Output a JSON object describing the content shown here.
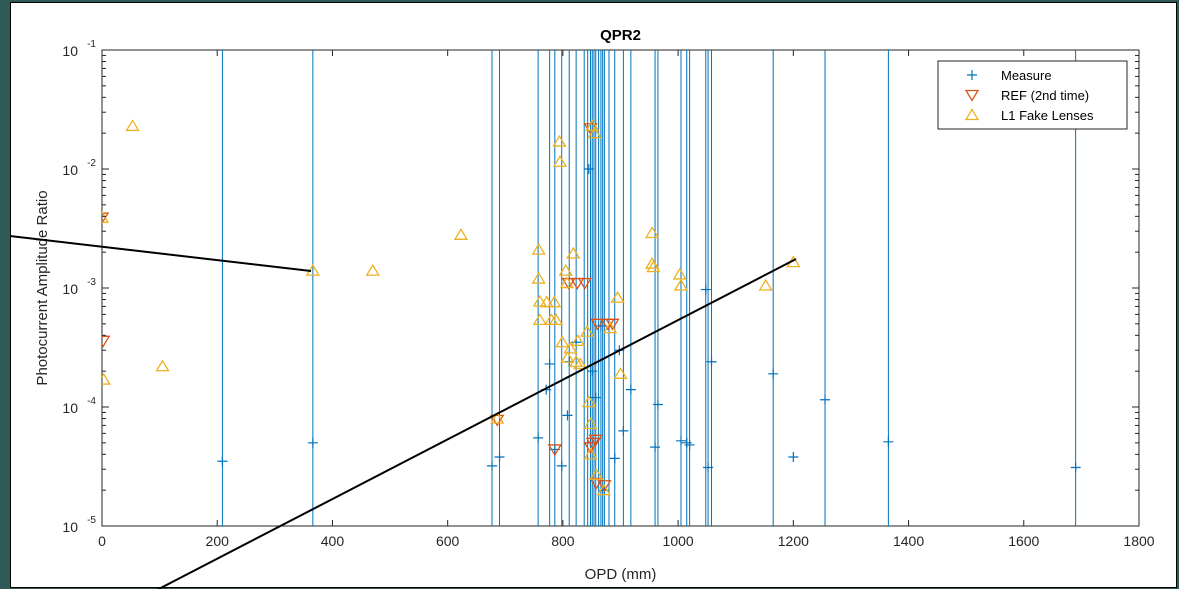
{
  "chart_data": {
    "type": "scatter",
    "title": "QPR2",
    "xlabel": "OPD (mm)",
    "ylabel": "Photocurrent Amplitude Ratio",
    "xlim": [
      0,
      1800
    ],
    "ylim": [
      1e-05,
      0.1
    ],
    "yscale": "log",
    "grid": false,
    "legend_position": "top-right",
    "x_ticks": [
      0,
      200,
      400,
      600,
      800,
      1000,
      1200,
      1400,
      1600,
      1800
    ],
    "x_tick_labels": [
      "0",
      "200",
      "400",
      "600",
      "800",
      "1000",
      "1200",
      "1400",
      "1600",
      "1800"
    ],
    "y_ticks": [
      1e-05,
      0.0001,
      0.001,
      0.01,
      0.1
    ],
    "y_tick_labels": [
      {
        "base": "10",
        "exp": "-5"
      },
      {
        "base": "10",
        "exp": "-4"
      },
      {
        "base": "10",
        "exp": "-3"
      },
      {
        "base": "10",
        "exp": "-2"
      },
      {
        "base": "10",
        "exp": "-1"
      }
    ],
    "measure_vertical_lines_x": [
      209,
      366,
      677,
      690,
      757,
      777,
      786,
      798,
      811,
      823,
      837,
      843,
      848,
      851,
      854,
      857,
      862,
      866,
      869,
      872,
      880,
      890,
      905,
      918,
      960,
      965,
      1005,
      1015,
      1020,
      1048,
      1052,
      1058,
      1165,
      1255,
      1365,
      1690
    ],
    "series": [
      {
        "name": "Measure",
        "marker": "plus",
        "color": "#0072bd",
        "points": [
          [
            209,
            3.5e-05
          ],
          [
            366,
            5e-05
          ],
          [
            677,
            3.2e-05
          ],
          [
            690,
            3.8e-05
          ],
          [
            757,
            5.5e-05
          ],
          [
            771,
            0.00014
          ],
          [
            777,
            0.00023
          ],
          [
            786,
            4.4e-05
          ],
          [
            798,
            3.2e-05
          ],
          [
            808,
            8.5e-05
          ],
          [
            811,
            0.00024
          ],
          [
            823,
            0.00035
          ],
          [
            845,
            0.01
          ],
          [
            848,
            5e-05
          ],
          [
            851,
            0.0002
          ],
          [
            857,
            0.00012
          ],
          [
            866,
            0.00048
          ],
          [
            872,
            2e-05
          ],
          [
            890,
            3.7e-05
          ],
          [
            898,
            0.0003
          ],
          [
            905,
            6.3e-05
          ],
          [
            918,
            0.00014
          ],
          [
            960,
            4.6e-05
          ],
          [
            965,
            0.000105
          ],
          [
            1005,
            5.2e-05
          ],
          [
            1015,
            5e-05
          ],
          [
            1020,
            4.8e-05
          ],
          [
            1048,
            0.00097
          ],
          [
            1052,
            3.1e-05
          ],
          [
            1058,
            0.00024
          ],
          [
            1165,
            0.00019
          ],
          [
            1200,
            3.8e-05
          ],
          [
            1255,
            0.000115
          ],
          [
            1365,
            5.1e-05
          ],
          [
            1690,
            3.1e-05
          ]
        ]
      },
      {
        "name": "REF (2nd time)",
        "marker": "triangle-down",
        "color": "#d95319",
        "points": [
          [
            0,
            0.0039
          ],
          [
            2,
            0.00036
          ],
          [
            686,
            7.8e-05
          ],
          [
            786,
            4.4e-05
          ],
          [
            810,
            0.0011
          ],
          [
            825,
            0.0011
          ],
          [
            838,
            0.0011
          ],
          [
            848,
            0.022
          ],
          [
            848,
            4.6e-05
          ],
          [
            852,
            5e-05
          ],
          [
            857,
            5.3e-05
          ],
          [
            860,
            0.0005
          ],
          [
            878,
            0.0005
          ],
          [
            886,
            0.0005
          ],
          [
            858,
            2.3e-05
          ],
          [
            872,
            2.2e-05
          ]
        ]
      },
      {
        "name": "L1 Fake Lenses",
        "marker": "triangle-up",
        "color": "#edb120",
        "points": [
          [
            0,
            0.0039
          ],
          [
            3,
            0.00017
          ],
          [
            53,
            0.023
          ],
          [
            105,
            0.00022
          ],
          [
            366,
            0.0014
          ],
          [
            470,
            0.0014
          ],
          [
            623,
            0.0028
          ],
          [
            686,
            8e-05
          ],
          [
            758,
            0.0021
          ],
          [
            758,
            0.0012
          ],
          [
            760,
            0.00077
          ],
          [
            760,
            0.00054
          ],
          [
            772,
            0.00076
          ],
          [
            780,
            0.00054
          ],
          [
            785,
            0.00076
          ],
          [
            788,
            0.00054
          ],
          [
            794,
            0.017
          ],
          [
            795,
            0.0115
          ],
          [
            799,
            0.00035
          ],
          [
            805,
            0.0014
          ],
          [
            807,
            0.0011
          ],
          [
            808,
            0.00026
          ],
          [
            813,
            0.00031
          ],
          [
            818,
            0.00195
          ],
          [
            823,
            0.00024
          ],
          [
            826,
            0.00036
          ],
          [
            830,
            0.00023
          ],
          [
            842,
            0.00043
          ],
          [
            845,
            0.00011
          ],
          [
            848,
            7.2e-05
          ],
          [
            848,
            4e-05
          ],
          [
            851,
            0.023
          ],
          [
            855,
            0.02
          ],
          [
            858,
            2.7e-05
          ],
          [
            871,
            2e-05
          ],
          [
            882,
            0.00046
          ],
          [
            895,
            0.00083
          ],
          [
            900,
            0.00019
          ],
          [
            955,
            0.0029
          ],
          [
            955,
            0.0016
          ],
          [
            957,
            0.0015
          ],
          [
            1003,
            0.0013
          ],
          [
            1005,
            0.00105
          ],
          [
            1152,
            0.00105
          ],
          [
            1200,
            0.00165
          ]
        ]
      }
    ]
  }
}
